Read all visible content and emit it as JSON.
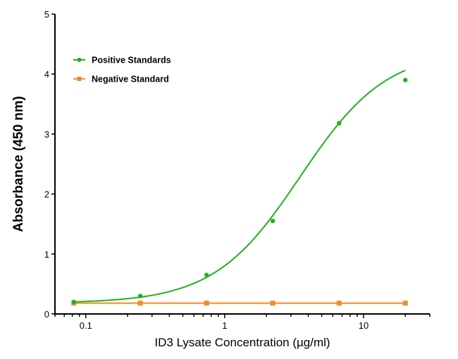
{
  "chart_data": {
    "type": "scatter",
    "title": "",
    "xlabel": "ID3 Lysate Concentration (µg/ml)",
    "ylabel": "Absorbance (450 nm)",
    "xscale": "log",
    "xlim": [
      0.06,
      30
    ],
    "ylim": [
      0,
      5
    ],
    "xticks": [
      0.1,
      1,
      10
    ],
    "xtick_labels": [
      "0.1",
      "1",
      "10"
    ],
    "yticks": [
      0,
      1,
      2,
      3,
      4,
      5
    ],
    "ytick_labels": [
      "0",
      "1",
      "2",
      "3",
      "4",
      "5"
    ],
    "grid": false,
    "legend_position": "top-left",
    "series": [
      {
        "name": "Positive Standards",
        "color": "#1db31d",
        "marker": "circle",
        "fit": "sigmoidal curve",
        "x": [
          0.082,
          0.247,
          0.741,
          2.22,
          6.67,
          20
        ],
        "y": [
          0.2,
          0.3,
          0.65,
          1.55,
          3.18,
          3.9
        ]
      },
      {
        "name": "Negative Standard",
        "color": "#f58a24",
        "marker": "square",
        "fit": "line",
        "x": [
          0.082,
          0.247,
          0.741,
          2.22,
          6.67,
          20
        ],
        "y": [
          0.18,
          0.18,
          0.18,
          0.18,
          0.18,
          0.18
        ]
      }
    ]
  }
}
